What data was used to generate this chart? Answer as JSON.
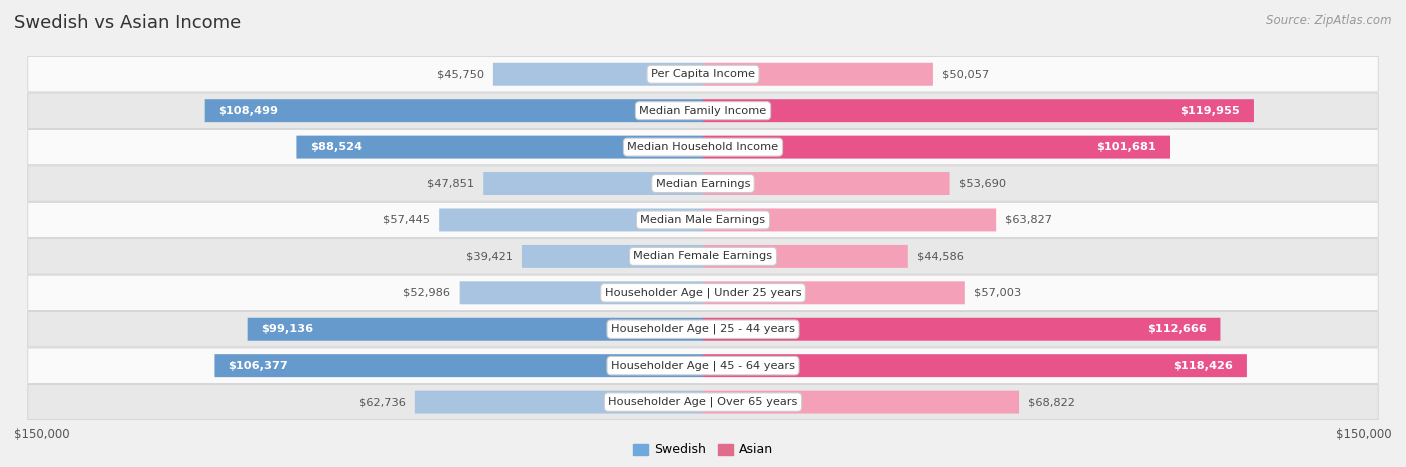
{
  "title": "Swedish vs Asian Income",
  "source": "Source: ZipAtlas.com",
  "categories": [
    "Per Capita Income",
    "Median Family Income",
    "Median Household Income",
    "Median Earnings",
    "Median Male Earnings",
    "Median Female Earnings",
    "Householder Age | Under 25 years",
    "Householder Age | 25 - 44 years",
    "Householder Age | 45 - 64 years",
    "Householder Age | Over 65 years"
  ],
  "swedish_values": [
    45750,
    108499,
    88524,
    47851,
    57445,
    39421,
    52986,
    99136,
    106377,
    62736
  ],
  "asian_values": [
    50057,
    119955,
    101681,
    53690,
    63827,
    44586,
    57003,
    112666,
    118426,
    68822
  ],
  "swedish_labels": [
    "$45,750",
    "$108,499",
    "$88,524",
    "$47,851",
    "$57,445",
    "$39,421",
    "$52,986",
    "$99,136",
    "$106,377",
    "$62,736"
  ],
  "asian_labels": [
    "$50,057",
    "$119,955",
    "$101,681",
    "$53,690",
    "$63,827",
    "$44,586",
    "$57,003",
    "$112,666",
    "$118,426",
    "$68,822"
  ],
  "max_value": 150000,
  "swedish_color_light": "#a8c4e0",
  "swedish_color_dark": "#6699cc",
  "asian_color_light": "#f4a0b8",
  "asian_color_dark": "#e8538a",
  "background_color": "#f0f0f0",
  "row_light_color": "#fafafa",
  "row_dark_color": "#e8e8e8",
  "label_threshold": 80000,
  "legend_swedish": "Swedish",
  "legend_asian": "Asian",
  "legend_swedish_color": "#6fa8dc",
  "legend_asian_color": "#e06c8a",
  "xlabel_left": "$150,000",
  "xlabel_right": "$150,000"
}
